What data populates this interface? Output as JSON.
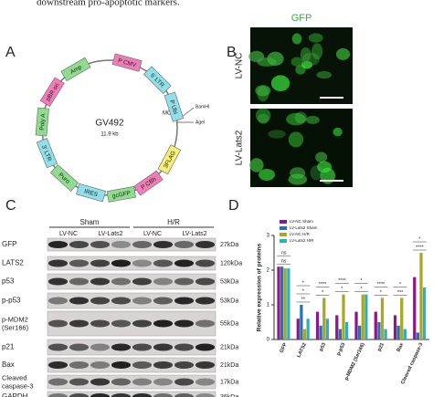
{
  "caption": "downstream pro-apoptotic markers.",
  "panel_a": {
    "label": "A",
    "plasmid": {
      "name": "GV492",
      "size": "11.9 kb",
      "features": [
        "Amp",
        "P CMV",
        "5' LTR",
        "P Ubi",
        "3FLAG",
        "P CBh",
        "gcGFP",
        "IRES",
        "Puro",
        "3' LTR",
        "Poly A",
        "pBR ori"
      ],
      "sites": [
        "MCS",
        "BamHI",
        "AgeI"
      ]
    }
  },
  "panel_b": {
    "label": "B",
    "channel": "GFP",
    "rows": [
      "LV-NC",
      "LV-Lats2"
    ]
  },
  "panel_c": {
    "label": "C",
    "groups": [
      "Sham",
      "H/R"
    ],
    "lanes": [
      "LV-NC",
      "LV-Lats2",
      "LV-NC",
      "LV-Lats2"
    ],
    "blots": [
      {
        "name": "GFP",
        "size": "27kDa"
      },
      {
        "name": "LATS2",
        "size": "120kDa"
      },
      {
        "name": "p53",
        "size": "53kDa"
      },
      {
        "name": "p-p53",
        "size": "53kDa"
      },
      {
        "name": "p-MDM2 (Ser166)",
        "size": "55kDa"
      },
      {
        "name": "p21",
        "size": "21kDa"
      },
      {
        "name": "Bax",
        "size": "21kDa"
      },
      {
        "name": "Cleaved caspase-3",
        "size": "17kDa"
      },
      {
        "name": "GAPDH",
        "size": "36kDa"
      }
    ]
  },
  "panel_d": {
    "label": "D",
    "chart_data": {
      "type": "bar",
      "y_label": "Relative expression of proteins",
      "categories": [
        "GFP",
        "LATS2",
        "p53",
        "p-p53",
        "p-MDM2 (Ser166)",
        "p21",
        "Bax",
        "Cleaved caspase-3"
      ],
      "series": [
        {
          "name": "LV-NC Sham",
          "color": "#8b1a89",
          "values": [
            2.1,
            0.6,
            0.8,
            0.7,
            0.8,
            0.8,
            0.7,
            1.8
          ]
        },
        {
          "name": "LV-Lats2 Sham",
          "color": "#2a6fb0",
          "values": [
            2.1,
            1.0,
            0.4,
            0.3,
            0.4,
            0.5,
            0.4,
            0.2
          ]
        },
        {
          "name": "LV-NC H/R",
          "color": "#a8a824",
          "values": [
            2.05,
            0.3,
            1.2,
            1.3,
            1.3,
            1.2,
            1.2,
            2.5
          ]
        },
        {
          "name": "LV-Lats2 H/R",
          "color": "#2fb0b8",
          "values": [
            2.05,
            0.6,
            0.6,
            0.5,
            1.3,
            0.3,
            0.3,
            1.5
          ]
        }
      ],
      "significance": [
        [
          "ns",
          "ns"
        ],
        [
          "**",
          "*",
          "*"
        ],
        [
          "*",
          "****"
        ],
        [
          "*",
          "****"
        ],
        [
          "*",
          "*"
        ],
        [
          "*",
          "****"
        ],
        [
          "***",
          "*"
        ],
        [
          "****",
          "*"
        ]
      ],
      "ylim": [
        0,
        3
      ],
      "yticks": [
        0,
        1,
        2,
        3
      ],
      "legend": "top-left"
    }
  }
}
